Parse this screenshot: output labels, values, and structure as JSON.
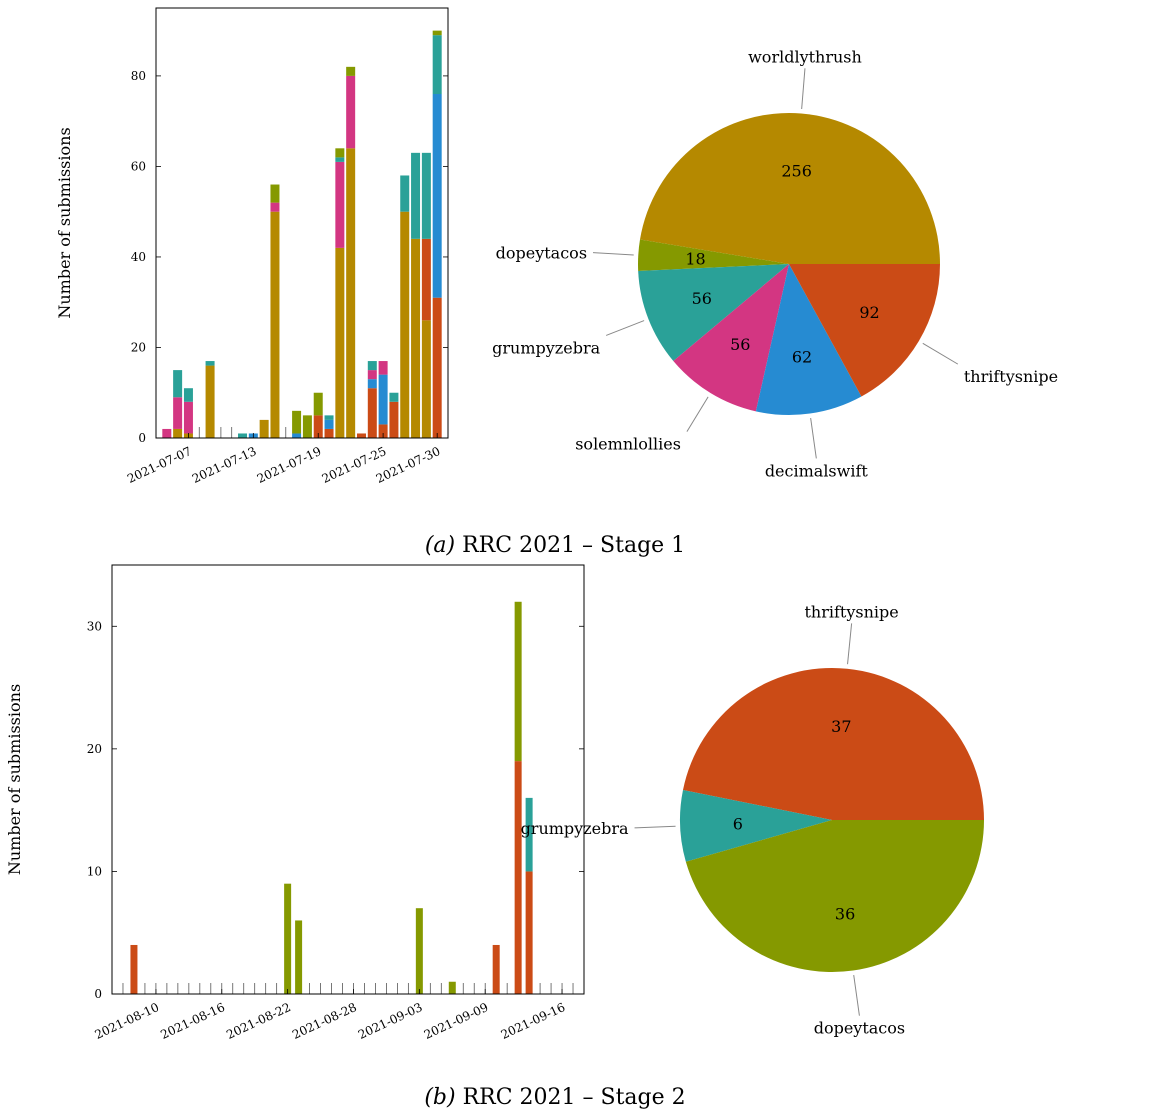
{
  "colors": {
    "worldlythrush": "#b58900",
    "thriftysnipe": "#cb4b16",
    "decimalswift": "#268bd2",
    "solemnlollies": "#d33682",
    "grumpyzebra": "#2aa198",
    "dopeytacos": "#859900"
  },
  "chart_data": [
    {
      "type": "bar",
      "stacked": true,
      "ylabel": "Number of submissions",
      "ylim": [
        0,
        95
      ],
      "yticks": [
        0,
        20,
        40,
        60,
        80
      ],
      "x_range": [
        "2021-07-04",
        "2021-07-31"
      ],
      "xtick_labels": [
        "2021-07-07",
        "2021-07-13",
        "2021-07-19",
        "2021-07-25",
        "2021-07-30"
      ],
      "grid": false,
      "days": [
        "2021-07-05",
        "2021-07-06",
        "2021-07-07",
        "2021-07-08",
        "2021-07-09",
        "2021-07-10",
        "2021-07-11",
        "2021-07-12",
        "2021-07-13",
        "2021-07-14",
        "2021-07-15",
        "2021-07-16",
        "2021-07-17",
        "2021-07-18",
        "2021-07-19",
        "2021-07-20",
        "2021-07-21",
        "2021-07-22",
        "2021-07-23",
        "2021-07-24",
        "2021-07-25",
        "2021-07-26",
        "2021-07-27",
        "2021-07-28",
        "2021-07-29",
        "2021-07-30"
      ],
      "series": [
        {
          "name": "thriftysnipe",
          "values": [
            0,
            0,
            0,
            0,
            0,
            0,
            0,
            0,
            0,
            0,
            0,
            0,
            0,
            0,
            5,
            2,
            0,
            0,
            1,
            11,
            3,
            8,
            0,
            0,
            0,
            0
          ]
        },
        {
          "name": "worldlythrush",
          "values": [
            0,
            2,
            1,
            0,
            16,
            0,
            0,
            0,
            0,
            4,
            50,
            0,
            0,
            0,
            0,
            0,
            42,
            64,
            0,
            0,
            0,
            0,
            50,
            44,
            0,
            0
          ]
        },
        {
          "name": "decimalswift",
          "values": [
            0,
            0,
            0,
            0,
            0,
            0,
            0,
            0,
            1,
            0,
            0,
            0,
            1,
            0,
            0,
            2,
            0,
            0,
            0,
            2,
            11,
            0,
            0,
            0,
            0,
            0
          ]
        },
        {
          "name": "solemnlollies",
          "values": [
            2,
            7,
            7,
            0,
            0,
            0,
            0,
            0,
            0,
            0,
            2,
            0,
            0,
            0,
            0,
            0,
            19,
            16,
            0,
            2,
            3,
            0,
            0,
            0,
            0,
            0
          ]
        },
        {
          "name": "grumpyzebra",
          "values": [
            0,
            6,
            3,
            0,
            1,
            0,
            0,
            1,
            0,
            0,
            0,
            0,
            0,
            0,
            0,
            1,
            1,
            0,
            0,
            2,
            0,
            2,
            8,
            19,
            0,
            0
          ]
        },
        {
          "name": "dopeytacos",
          "values": [
            0,
            0,
            0,
            0,
            0,
            0,
            0,
            0,
            0,
            0,
            4,
            0,
            5,
            5,
            0,
            0,
            2,
            2,
            0,
            0,
            0,
            0,
            0,
            0,
            0,
            0
          ]
        }
      ],
      "bars_override": [
        {
          "day": "2021-07-19",
          "stack": [
            [
              "thriftysnipe",
              5
            ],
            [
              "dopeytacos",
              5
            ]
          ]
        },
        {
          "day": "2021-07-29",
          "stack": [
            [
              "worldlythrush",
              26
            ],
            [
              "thriftysnipe",
              18
            ],
            [
              "grumpyzebra",
              19
            ]
          ]
        },
        {
          "day": "2021-07-30",
          "stack": [
            [
              "thriftysnipe",
              31
            ],
            [
              "decimalswift",
              45
            ],
            [
              "grumpyzebra",
              13
            ],
            [
              "dopeytacos",
              1
            ]
          ]
        }
      ]
    },
    {
      "type": "pie",
      "slices": [
        {
          "label": "worldlythrush",
          "value": 256
        },
        {
          "label": "dopeytacos",
          "value": 18
        },
        {
          "label": "grumpyzebra",
          "value": 56
        },
        {
          "label": "solemnlollies",
          "value": 56
        },
        {
          "label": "decimalswift",
          "value": 62
        },
        {
          "label": "thriftysnipe",
          "value": 92
        }
      ]
    },
    {
      "type": "bar",
      "stacked": true,
      "ylabel": "Number of submissions",
      "ylim": [
        0,
        35
      ],
      "yticks": [
        0,
        10,
        20,
        30
      ],
      "x_range": [
        "2021-08-06",
        "2021-09-18"
      ],
      "xtick_labels": [
        "2021-08-10",
        "2021-08-16",
        "2021-08-22",
        "2021-08-28",
        "2021-09-03",
        "2021-09-09",
        "2021-09-16"
      ],
      "grid": false,
      "bars": [
        {
          "day": "2021-08-08",
          "stack": [
            [
              "thriftysnipe",
              4
            ]
          ]
        },
        {
          "day": "2021-08-22",
          "stack": [
            [
              "dopeytacos",
              9
            ]
          ]
        },
        {
          "day": "2021-08-23",
          "stack": [
            [
              "dopeytacos",
              6
            ]
          ]
        },
        {
          "day": "2021-09-03",
          "stack": [
            [
              "dopeytacos",
              7
            ]
          ]
        },
        {
          "day": "2021-09-06",
          "stack": [
            [
              "dopeytacos",
              1
            ]
          ]
        },
        {
          "day": "2021-09-10",
          "stack": [
            [
              "thriftysnipe",
              4
            ]
          ]
        },
        {
          "day": "2021-09-12",
          "stack": [
            [
              "thriftysnipe",
              19
            ],
            [
              "dopeytacos",
              13
            ]
          ]
        },
        {
          "day": "2021-09-13",
          "stack": [
            [
              "thriftysnipe",
              10
            ],
            [
              "grumpyzebra",
              6
            ]
          ]
        }
      ]
    },
    {
      "type": "pie",
      "slices": [
        {
          "label": "thriftysnipe",
          "value": 37
        },
        {
          "label": "grumpyzebra",
          "value": 6
        },
        {
          "label": "dopeytacos",
          "value": 36
        }
      ]
    }
  ],
  "captions": [
    "(a) RRC 2021 – Stage 1",
    "(b) RRC 2021 – Stage 2"
  ],
  "caption_parts": [
    {
      "letter": "(a)",
      "text": " RRC 2021 – Stage 1"
    },
    {
      "letter": "(b)",
      "text": " RRC 2021 – Stage 2"
    }
  ]
}
